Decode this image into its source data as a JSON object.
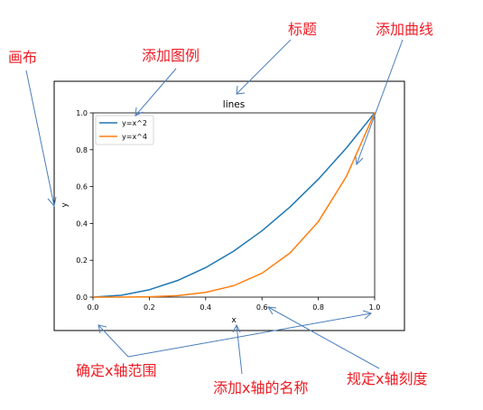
{
  "chart_data": {
    "type": "line",
    "title": "lines",
    "xlabel": "x",
    "ylabel": "y",
    "xlim": [
      0.0,
      1.0
    ],
    "ylim": [
      0.0,
      1.0
    ],
    "xticks": [
      0.0,
      0.2,
      0.4,
      0.6,
      0.8,
      1.0
    ],
    "yticks": [
      0.0,
      0.2,
      0.4,
      0.6,
      0.8,
      1.0
    ],
    "xtick_labels": [
      "0.0",
      "0.2",
      "0.4",
      "0.6",
      "0.8",
      "1.0"
    ],
    "ytick_labels": [
      "0.0",
      "0.2",
      "0.4",
      "0.6",
      "0.8",
      "1.0"
    ],
    "grid": false,
    "legend_position": "top-left",
    "x": [
      0.0,
      0.1,
      0.2,
      0.3,
      0.4,
      0.5,
      0.6,
      0.7,
      0.8,
      0.9,
      1.0
    ],
    "series": [
      {
        "name": "y=x^2",
        "color": "#1f77b4",
        "values": [
          0.0,
          0.01,
          0.04,
          0.09,
          0.16,
          0.25,
          0.36,
          0.49,
          0.64,
          0.81,
          1.0
        ]
      },
      {
        "name": "y=x^4",
        "color": "#ff7f0e",
        "values": [
          0.0,
          0.0001,
          0.0016,
          0.0081,
          0.0256,
          0.0625,
          0.1296,
          0.2401,
          0.4096,
          0.6561,
          1.0
        ]
      }
    ]
  },
  "annotations": {
    "canvas": "画布",
    "legend": "添加图例",
    "title": "标题",
    "curve": "添加曲线",
    "xrange": "确定x轴范围",
    "xname": "添加x轴的名称",
    "xticks": "规定x轴刻度"
  },
  "colors": {
    "annotation": "#ee1c24",
    "arrow": "#4a7ebb"
  }
}
